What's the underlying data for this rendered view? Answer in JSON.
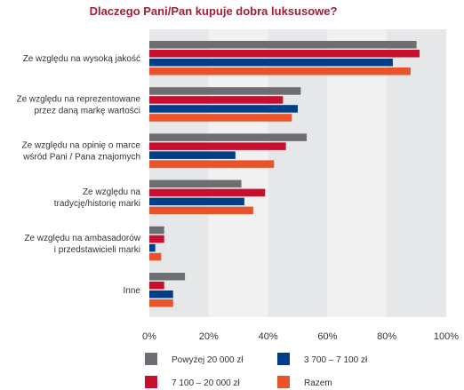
{
  "chart_data": {
    "type": "bar",
    "orientation": "horizontal",
    "title": "Dlaczego Pani/Pan kupuje dobra luksusowe?",
    "categories": [
      [
        "Ze względu na wysoką jakość"
      ],
      [
        "Ze względu na reprezentowane",
        "przez daną markę wartości"
      ],
      [
        "Ze względu na opinię o marce",
        "wśród Pani / Pana znajomych"
      ],
      [
        "Ze względu na",
        "tradycję/historię marki"
      ],
      [
        "Ze względu na ambasadorów",
        "i przedstawicieli marki"
      ],
      [
        "Inne"
      ]
    ],
    "series": [
      {
        "name": "Powyżej 20 000 zł",
        "color": "#6d6e71",
        "values": [
          90,
          51,
          53,
          31,
          5,
          12
        ]
      },
      {
        "name": "7 100 – 20 000 zł",
        "color": "#c8102e",
        "values": [
          91,
          45,
          46,
          39,
          5,
          5
        ]
      },
      {
        "name": "3 700 – 7 100 zł",
        "color": "#003f87",
        "values": [
          82,
          50,
          29,
          32,
          2,
          8
        ]
      },
      {
        "name": "Razem",
        "color": "#e8532a",
        "values": [
          88,
          48,
          42,
          35,
          4,
          8
        ]
      }
    ],
    "xlim": [
      0,
      100
    ],
    "xticks": [
      "0%",
      "20%",
      "40%",
      "60%",
      "80%",
      "100%"
    ],
    "legend": [
      {
        "series": 0
      },
      {
        "series": 2
      },
      {
        "series": 1
      },
      {
        "series": 3
      }
    ],
    "legend_position": "bottom",
    "grid": true
  }
}
